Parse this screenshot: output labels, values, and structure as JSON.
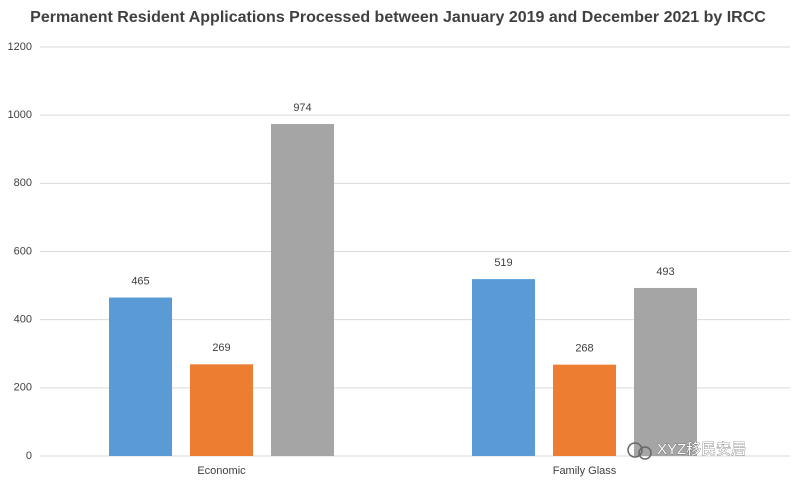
{
  "chart_data": {
    "type": "bar",
    "title": "Permanent Resident Applications Processed between January 2019 and December 2021 by IRCC",
    "categories": [
      "Economic",
      "Family Glass"
    ],
    "series": [
      {
        "color": "#5b9bd5",
        "values": [
          465,
          519
        ]
      },
      {
        "color": "#ed7d31",
        "values": [
          269,
          268
        ]
      },
      {
        "color": "#a5a5a5",
        "values": [
          974,
          493
        ]
      }
    ],
    "ylim": [
      0,
      1200
    ],
    "yticks": [
      0,
      200,
      400,
      600,
      800,
      1000,
      1200
    ],
    "grid": true,
    "watermark": "XYZ移民安居"
  }
}
